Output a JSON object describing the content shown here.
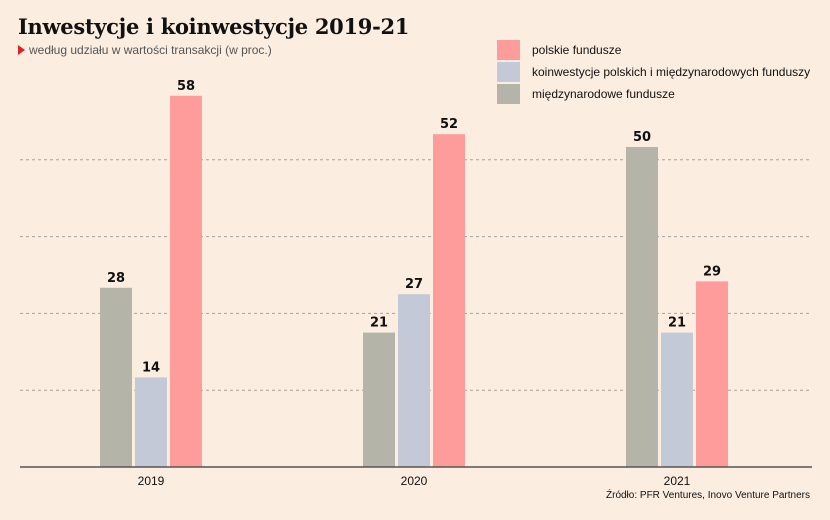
{
  "header": {
    "title": "Inwestycje i koinwestycje 2019-21",
    "subtitle": "według udziału w wartości transakcji (w proc.)"
  },
  "source": "Źródło: PFR Ventures, Inovo Venture Partners",
  "colors": {
    "background": "#fbede0",
    "subtitle_marker": "#e3202a"
  },
  "chart_data": {
    "type": "bar",
    "title": "Inwestycje i koinwestycje 2019-21",
    "subtitle": "według udziału w wartości transakcji (w proc.)",
    "categories": [
      "2019",
      "2020",
      "2021"
    ],
    "series": [
      {
        "name": "międzynarodowe fundusze",
        "color": "#b5b4a8",
        "values": [
          28,
          21,
          50
        ]
      },
      {
        "name": "koinwestycje polskich i międzynarodowych funduszy",
        "color": "#c4c9d8",
        "values": [
          14,
          27,
          21
        ]
      },
      {
        "name": "polskie fundusze",
        "color": "#fd9c9a",
        "values": [
          58,
          52,
          29
        ]
      }
    ],
    "legend_order": [
      "polskie fundusze",
      "koinwestycje polskich i międzynarodowych funduszy",
      "międzynarodowe fundusze"
    ],
    "legend_position": "top-right",
    "ylim": [
      0,
      60
    ],
    "grid": true,
    "data_labels": true
  }
}
